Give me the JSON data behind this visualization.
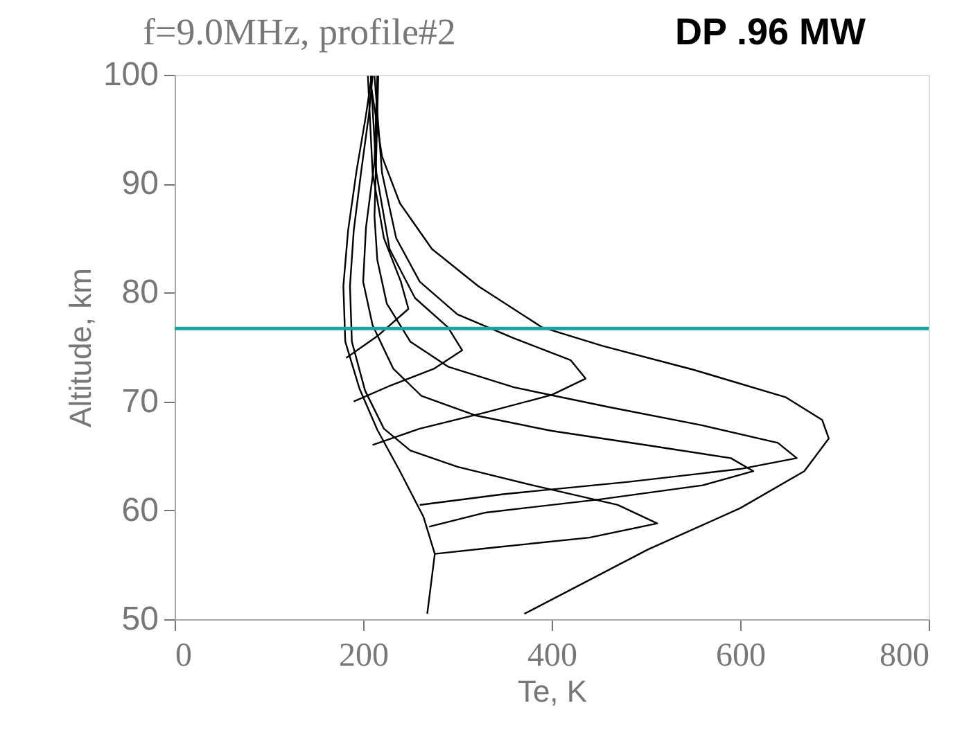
{
  "chart_data": {
    "type": "line",
    "title": "f=9.0MHz, profile#2",
    "xlabel": "Te, K",
    "ylabel": "Altitude, km",
    "annotations": [
      "DP .96 MW"
    ],
    "xlim": [
      0,
      800
    ],
    "xticks": [
      0,
      200,
      400,
      600,
      800
    ],
    "ylim": [
      50,
      100
    ],
    "yticks": [
      50,
      60,
      70,
      80,
      90,
      100
    ],
    "grid": false,
    "marker": "none",
    "line_style": "solid",
    "ref_lines": [
      {
        "axis": "y",
        "value": 76.7,
        "color": "#1aa3a3"
      }
    ],
    "series": [
      {
        "color": "#000000",
        "x": [
          268,
          276,
          264,
          239,
          215,
          196,
          181,
          179,
          184,
          193,
          203,
          209
        ],
        "values": [
          50.5,
          56,
          59.4,
          63.6,
          67.4,
          71.2,
          75.5,
          80.6,
          85.7,
          91.2,
          96.3,
          99.9
        ]
      },
      {
        "color": "#000000",
        "x": [
          276,
          340,
          440,
          512,
          470,
          380,
          300,
          250,
          222,
          202,
          188,
          186,
          190,
          198,
          206,
          210
        ],
        "values": [
          56,
          56.6,
          57.5,
          58.8,
          60.5,
          62.3,
          64,
          65.5,
          67.5,
          71,
          75.5,
          80.6,
          85.7,
          91.2,
          96.3,
          99.9
        ]
      },
      {
        "color": "#000000",
        "x": [
          270,
          330,
          450,
          560,
          614,
          590,
          500,
          400,
          320,
          262,
          232,
          210,
          200,
          203,
          212,
          215
        ],
        "values": [
          58.5,
          59.8,
          61,
          62.3,
          63.6,
          64.8,
          66,
          67.3,
          68.7,
          70.5,
          73,
          77,
          81,
          86,
          92,
          99.9
        ]
      },
      {
        "color": "#000000",
        "x": [
          260,
          350,
          480,
          600,
          660,
          640,
          560,
          460,
          360,
          290,
          250,
          225,
          215,
          212,
          214,
          216
        ],
        "values": [
          60.5,
          61.5,
          62.6,
          63.8,
          64.8,
          66.2,
          67.8,
          69.5,
          71.3,
          73.2,
          75.5,
          79,
          83,
          87,
          93,
          99.9
        ]
      },
      {
        "color": "#000000",
        "x": [
          210,
          260,
          330,
          400,
          436,
          420,
          360,
          300,
          260,
          235,
          220,
          212
        ],
        "values": [
          66,
          67.5,
          69,
          70.6,
          72.1,
          73.8,
          75.8,
          78,
          81,
          85,
          91,
          99.9
        ]
      },
      {
        "color": "#000000",
        "x": [
          190,
          230,
          275,
          305,
          290,
          255,
          228,
          214,
          208
        ],
        "values": [
          70,
          71.5,
          73,
          74.7,
          76.8,
          79.5,
          84,
          91,
          99.9
        ]
      },
      {
        "color": "#000000",
        "x": [
          182,
          215,
          248,
          240,
          222,
          210,
          205
        ],
        "values": [
          74,
          76,
          78.5,
          81,
          85,
          91,
          99.9
        ]
      },
      {
        "color": "#000000",
        "x": [
          371,
          502,
          600,
          668,
          694,
          687,
          648,
          551,
          454,
          390,
          322,
          273,
          239,
          220,
          208
        ],
        "values": [
          50.5,
          56.4,
          60.2,
          63.6,
          66.6,
          68.3,
          70.4,
          72.9,
          75.1,
          76.8,
          80.6,
          84,
          88.2,
          92.5,
          99.2
        ]
      }
    ]
  }
}
